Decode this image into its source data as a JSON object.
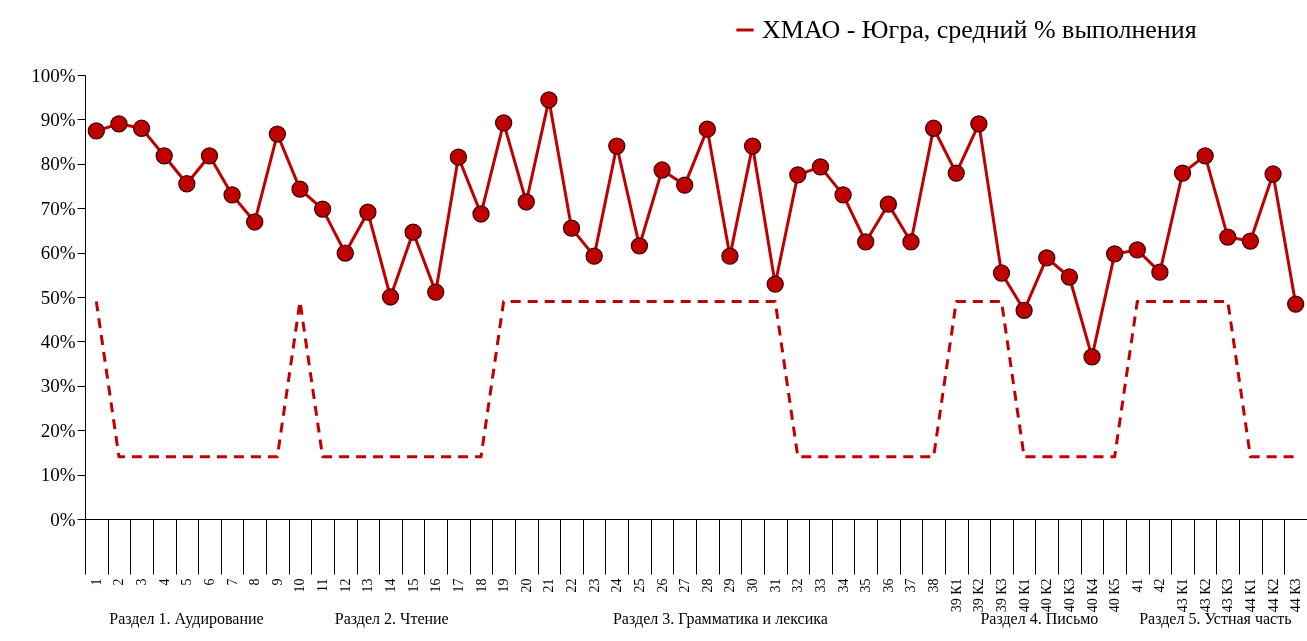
{
  "chart_data": {
    "type": "line",
    "categories": [
      "1",
      "2",
      "3",
      "4",
      "5",
      "6",
      "7",
      "8",
      "9",
      "10",
      "11",
      "12",
      "13",
      "14",
      "15",
      "16",
      "17",
      "18",
      "19",
      "20",
      "21",
      "22",
      "23",
      "24",
      "25",
      "26",
      "27",
      "28",
      "29",
      "30",
      "31",
      "32",
      "33",
      "34",
      "35",
      "36",
      "37",
      "38",
      "39 К1",
      "39 К2",
      "39 К3",
      "40 К1",
      "40 К2",
      "40 К3",
      "40 К4",
      "40 К5",
      "41",
      "42",
      "43 К1",
      "43 К2",
      "43 К3",
      "44 К1",
      "44 К2",
      "44 К3"
    ],
    "series": [
      {
        "name": "ХМАО - Югра, средний % выполнения",
        "color": "#c00000",
        "marker": "circle",
        "line_style": "solid",
        "values": [
          87.4,
          89,
          88,
          81.8,
          75.5,
          81.8,
          73,
          66.9,
          86.7,
          74.3,
          69.8,
          59.9,
          69.1,
          50,
          64.6,
          51.1,
          81.5,
          68.7,
          89.2,
          71.4,
          94.4,
          65.5,
          59.2,
          84,
          61.5,
          78.6,
          75.2,
          87.8,
          59.2,
          84,
          52.9,
          77.5,
          79.3,
          73,
          62.4,
          70.9,
          62.4,
          88,
          77.9,
          89,
          55.4,
          47,
          58.8,
          54.5,
          36.5,
          59.7,
          60.6,
          55.6,
          77.9,
          81.8,
          63.5,
          62.6,
          77.7,
          48.4
        ]
      },
      {
        "color": "#c00000",
        "marker": "none",
        "line_style": "dashed",
        "values": [
          49,
          14,
          14,
          14,
          14,
          14,
          14,
          14,
          14,
          49,
          14,
          14,
          14,
          14,
          14,
          14,
          14,
          14,
          49,
          49,
          49,
          49,
          49,
          49,
          49,
          49,
          49,
          49,
          49,
          49,
          49,
          14,
          14,
          14,
          14,
          14,
          14,
          14,
          49,
          49,
          49,
          14,
          14,
          14,
          14,
          14,
          49,
          49,
          49,
          49,
          49,
          14,
          14,
          14
        ]
      }
    ],
    "ylim": [
      0,
      100
    ],
    "yticks": [
      {
        "value": 0,
        "label": "0%"
      },
      {
        "value": 10,
        "label": "10%"
      },
      {
        "value": 20,
        "label": "20%"
      },
      {
        "value": 30,
        "label": "30%"
      },
      {
        "value": 40,
        "label": "40%"
      },
      {
        "value": 50,
        "label": "50%"
      },
      {
        "value": 60,
        "label": "60%"
      },
      {
        "value": 70,
        "label": "70%"
      },
      {
        "value": 80,
        "label": "80%"
      },
      {
        "value": 90,
        "label": "90%"
      },
      {
        "value": 100,
        "label": "100%"
      }
    ],
    "legend": "top right",
    "annotations": [
      "Раздел 1. Аудирование",
      "Раздел 2. Чтение",
      "Раздел 3. Грамматика и лексика",
      "Раздел 4. Письмо",
      "Раздел 5. Устная часть"
    ]
  }
}
